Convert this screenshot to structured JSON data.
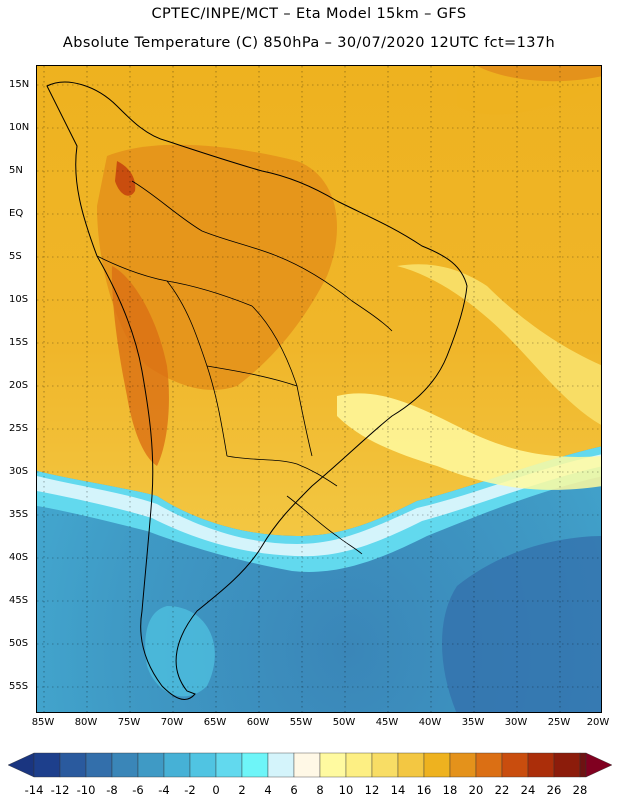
{
  "header": {
    "line1": "CPTEC/INPE/MCT –  Eta Model 15km – GFS",
    "line2": "Absolute Temperature (C) 850hPa – 30/07/2020 12UTC fct=137h"
  },
  "map": {
    "variable": "Absolute Temperature",
    "units": "C",
    "level": "850hPa",
    "region": "South America",
    "lat_labels": [
      "15N",
      "10N",
      "5N",
      "EQ",
      "5S",
      "10S",
      "15S",
      "20S",
      "25S",
      "30S",
      "35S",
      "40S",
      "45S",
      "50S",
      "55S"
    ],
    "lon_labels": [
      "85W",
      "80W",
      "75W",
      "70W",
      "65W",
      "60W",
      "55W",
      "50W",
      "45W",
      "40W",
      "35W",
      "30W",
      "25W",
      "20W"
    ]
  },
  "colorbar": {
    "labels": [
      "-14",
      "-12",
      "-10",
      "-8",
      "-6",
      "-4",
      "-2",
      "0",
      "2",
      "4",
      "6",
      "8",
      "10",
      "12",
      "14",
      "16",
      "18",
      "20",
      "22",
      "24",
      "26",
      "28"
    ],
    "colors": [
      "#1d3f8c",
      "#2a5a9e",
      "#336fab",
      "#3a86b8",
      "#3f9ac5",
      "#46b1d6",
      "#50c4e2",
      "#62d9ee",
      "#6ef5f8",
      "#d4f4fb",
      "#fff8e6",
      "#fffaa0",
      "#fdef83",
      "#f8dd65",
      "#f3c742",
      "#eeb21f",
      "#e4921b",
      "#db6f14",
      "#c94d0e",
      "#ab2e0a",
      "#8c1c0b",
      "#6e1212"
    ],
    "end_low": "#1a3580",
    "end_high": "#800020"
  }
}
